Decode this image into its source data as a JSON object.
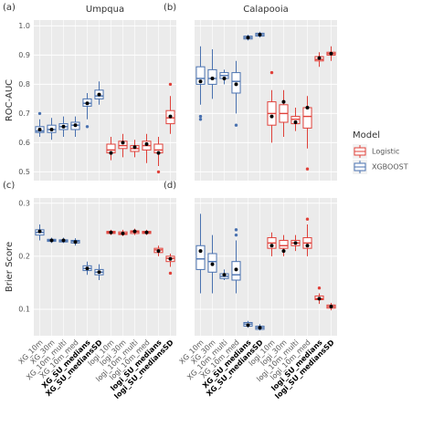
{
  "chart_data": [
    {
      "type": "boxplot",
      "tag": "(a)",
      "title": "Umpqua",
      "ylabel": "ROC-AUC",
      "ylim": [
        0.47,
        1.02
      ],
      "yticks": [
        0.5,
        0.6,
        0.7,
        0.8,
        0.9,
        {
          "value": 1,
          "label": "1.0"
        }
      ],
      "tick_labels": true,
      "min": [
        0.62,
        0.61,
        0.62,
        0.62,
        0.68,
        0.73,
        0.54,
        0.55,
        0.55,
        0.53,
        0.52,
        0.63
      ],
      "q1": [
        0.635,
        0.635,
        0.645,
        0.645,
        0.725,
        0.75,
        0.565,
        0.58,
        0.57,
        0.575,
        0.565,
        0.665
      ],
      "median": [
        0.64,
        0.645,
        0.655,
        0.66,
        0.735,
        0.76,
        0.575,
        0.59,
        0.58,
        0.59,
        0.575,
        0.685
      ],
      "q3": [
        0.655,
        0.66,
        0.665,
        0.67,
        0.75,
        0.78,
        0.595,
        0.605,
        0.59,
        0.605,
        0.595,
        0.71
      ],
      "max": [
        0.68,
        0.685,
        0.69,
        0.69,
        0.77,
        0.81,
        0.62,
        0.63,
        0.61,
        0.63,
        0.62,
        0.76
      ],
      "mean": [
        0.645,
        0.645,
        0.655,
        0.66,
        0.735,
        0.765,
        0.565,
        0.6,
        0.585,
        0.595,
        0.565,
        0.69
      ],
      "outliers": [
        [
          0.7
        ],
        [],
        [],
        [],
        [
          0.655
        ],
        [],
        [],
        [],
        [],
        [],
        [
          0.5
        ],
        [
          0.8
        ]
      ]
    },
    {
      "type": "boxplot",
      "tag": "(b)",
      "title": "Calapooia",
      "ylim": [
        0.47,
        1.02
      ],
      "yticks": [
        0.5,
        0.6,
        0.7,
        0.8,
        0.9,
        1
      ],
      "tick_labels": false,
      "min": [
        0.73,
        0.75,
        0.8,
        0.7,
        0.95,
        0.96,
        0.6,
        0.62,
        0.64,
        0.58,
        0.86,
        0.88
      ],
      "q1": [
        0.8,
        0.8,
        0.82,
        0.77,
        0.955,
        0.965,
        0.66,
        0.67,
        0.665,
        0.65,
        0.88,
        0.9
      ],
      "median": [
        0.82,
        0.82,
        0.83,
        0.81,
        0.96,
        0.97,
        0.7,
        0.7,
        0.68,
        0.69,
        0.885,
        0.905
      ],
      "q3": [
        0.86,
        0.85,
        0.84,
        0.84,
        0.965,
        0.975,
        0.74,
        0.73,
        0.69,
        0.72,
        0.895,
        0.91
      ],
      "max": [
        0.93,
        0.92,
        0.85,
        0.88,
        0.97,
        0.98,
        0.78,
        0.78,
        0.72,
        0.76,
        0.91,
        0.93
      ],
      "mean": [
        0.81,
        0.82,
        0.82,
        0.8,
        0.96,
        0.97,
        0.69,
        0.74,
        0.67,
        0.72,
        0.89,
        0.905
      ],
      "outliers": [
        [
          0.68,
          0.69
        ],
        [],
        [],
        [
          0.66
        ],
        [],
        [],
        [
          0.84
        ],
        [],
        [],
        [
          0.51
        ],
        [],
        []
      ]
    },
    {
      "type": "boxplot",
      "tag": "(c)",
      "ylabel": "Brier Score",
      "ylim": [
        0.05,
        0.31
      ],
      "yticks": [
        0.1,
        0.2,
        0.3
      ],
      "tick_labels": true,
      "categories": [
        "XG_10m",
        "XG_30m",
        "XG_10m_multi",
        "XG_10m_med",
        "XG_SU_medians",
        "XG_SU_mediansSD",
        "logi_10m",
        "logi_30m",
        "logi_10m_multi",
        "logi_10m_med",
        "logi_SU_medians",
        "logi_SU_mediansSD"
      ],
      "min": [
        0.23,
        0.225,
        0.225,
        0.22,
        0.165,
        0.155,
        0.24,
        0.238,
        0.24,
        0.24,
        0.2,
        0.18
      ],
      "q1": [
        0.24,
        0.228,
        0.227,
        0.225,
        0.173,
        0.165,
        0.243,
        0.241,
        0.243,
        0.243,
        0.207,
        0.19
      ],
      "median": [
        0.245,
        0.23,
        0.229,
        0.228,
        0.177,
        0.17,
        0.245,
        0.243,
        0.246,
        0.245,
        0.212,
        0.196
      ],
      "q3": [
        0.25,
        0.232,
        0.231,
        0.23,
        0.182,
        0.175,
        0.247,
        0.246,
        0.248,
        0.247,
        0.215,
        0.2
      ],
      "max": [
        0.26,
        0.235,
        0.235,
        0.234,
        0.19,
        0.185,
        0.25,
        0.25,
        0.252,
        0.25,
        0.22,
        0.205
      ],
      "mean": [
        0.247,
        0.23,
        0.23,
        0.227,
        0.177,
        0.17,
        0.245,
        0.243,
        0.247,
        0.245,
        0.21,
        0.195
      ],
      "outliers": [
        [],
        [],
        [],
        [],
        [],
        [],
        [],
        [],
        [],
        [],
        [],
        [
          0.168
        ]
      ]
    },
    {
      "type": "boxplot",
      "tag": "(d)",
      "ylim": [
        0.05,
        0.31
      ],
      "yticks": [
        0.1,
        0.2,
        0.3
      ],
      "tick_labels": false,
      "categories": [
        "XG_10m",
        "XG_30m",
        "XG_10m_multi",
        "XG_10m_med",
        "XG_SU_medians",
        "XG_SU_mediansSD",
        "logi_10m",
        "logi_30m",
        "logi_10m_multi",
        "logi_10m_med",
        "logi_SU_medians",
        "logi_SU_mediansSD"
      ],
      "min": [
        0.13,
        0.13,
        0.155,
        0.13,
        0.065,
        0.06,
        0.2,
        0.2,
        0.21,
        0.2,
        0.11,
        0.098
      ],
      "q1": [
        0.175,
        0.17,
        0.158,
        0.155,
        0.068,
        0.062,
        0.215,
        0.215,
        0.22,
        0.215,
        0.118,
        0.102
      ],
      "median": [
        0.195,
        0.19,
        0.162,
        0.165,
        0.072,
        0.065,
        0.225,
        0.22,
        0.225,
        0.225,
        0.12,
        0.105
      ],
      "q3": [
        0.22,
        0.205,
        0.167,
        0.19,
        0.075,
        0.068,
        0.235,
        0.23,
        0.23,
        0.235,
        0.125,
        0.108
      ],
      "max": [
        0.28,
        0.24,
        0.175,
        0.23,
        0.078,
        0.072,
        0.245,
        0.24,
        0.24,
        0.26,
        0.13,
        0.112
      ],
      "mean": [
        0.21,
        0.185,
        0.165,
        0.175,
        0.07,
        0.065,
        0.22,
        0.21,
        0.225,
        0.22,
        0.12,
        0.105
      ],
      "outliers": [
        [],
        [],
        [],
        [
          0.24,
          0.25
        ],
        [],
        [],
        [],
        [],
        [],
        [
          0.27
        ],
        [
          0.14
        ],
        []
      ]
    }
  ],
  "box_colors": [
    "#4a72b0",
    "#4a72b0",
    "#4a72b0",
    "#4a72b0",
    "#4a72b0",
    "#4a72b0",
    "#e0413a",
    "#e0413a",
    "#e0413a",
    "#e0413a",
    "#e0413a",
    "#e0413a"
  ],
  "bold_category_indices": [
    4,
    5,
    10,
    11
  ],
  "legend": {
    "title": "Model",
    "entries": [
      {
        "name": "Logistic",
        "color": "#e0413a"
      },
      {
        "name": "XGBOOST",
        "color": "#4a72b0"
      }
    ]
  }
}
